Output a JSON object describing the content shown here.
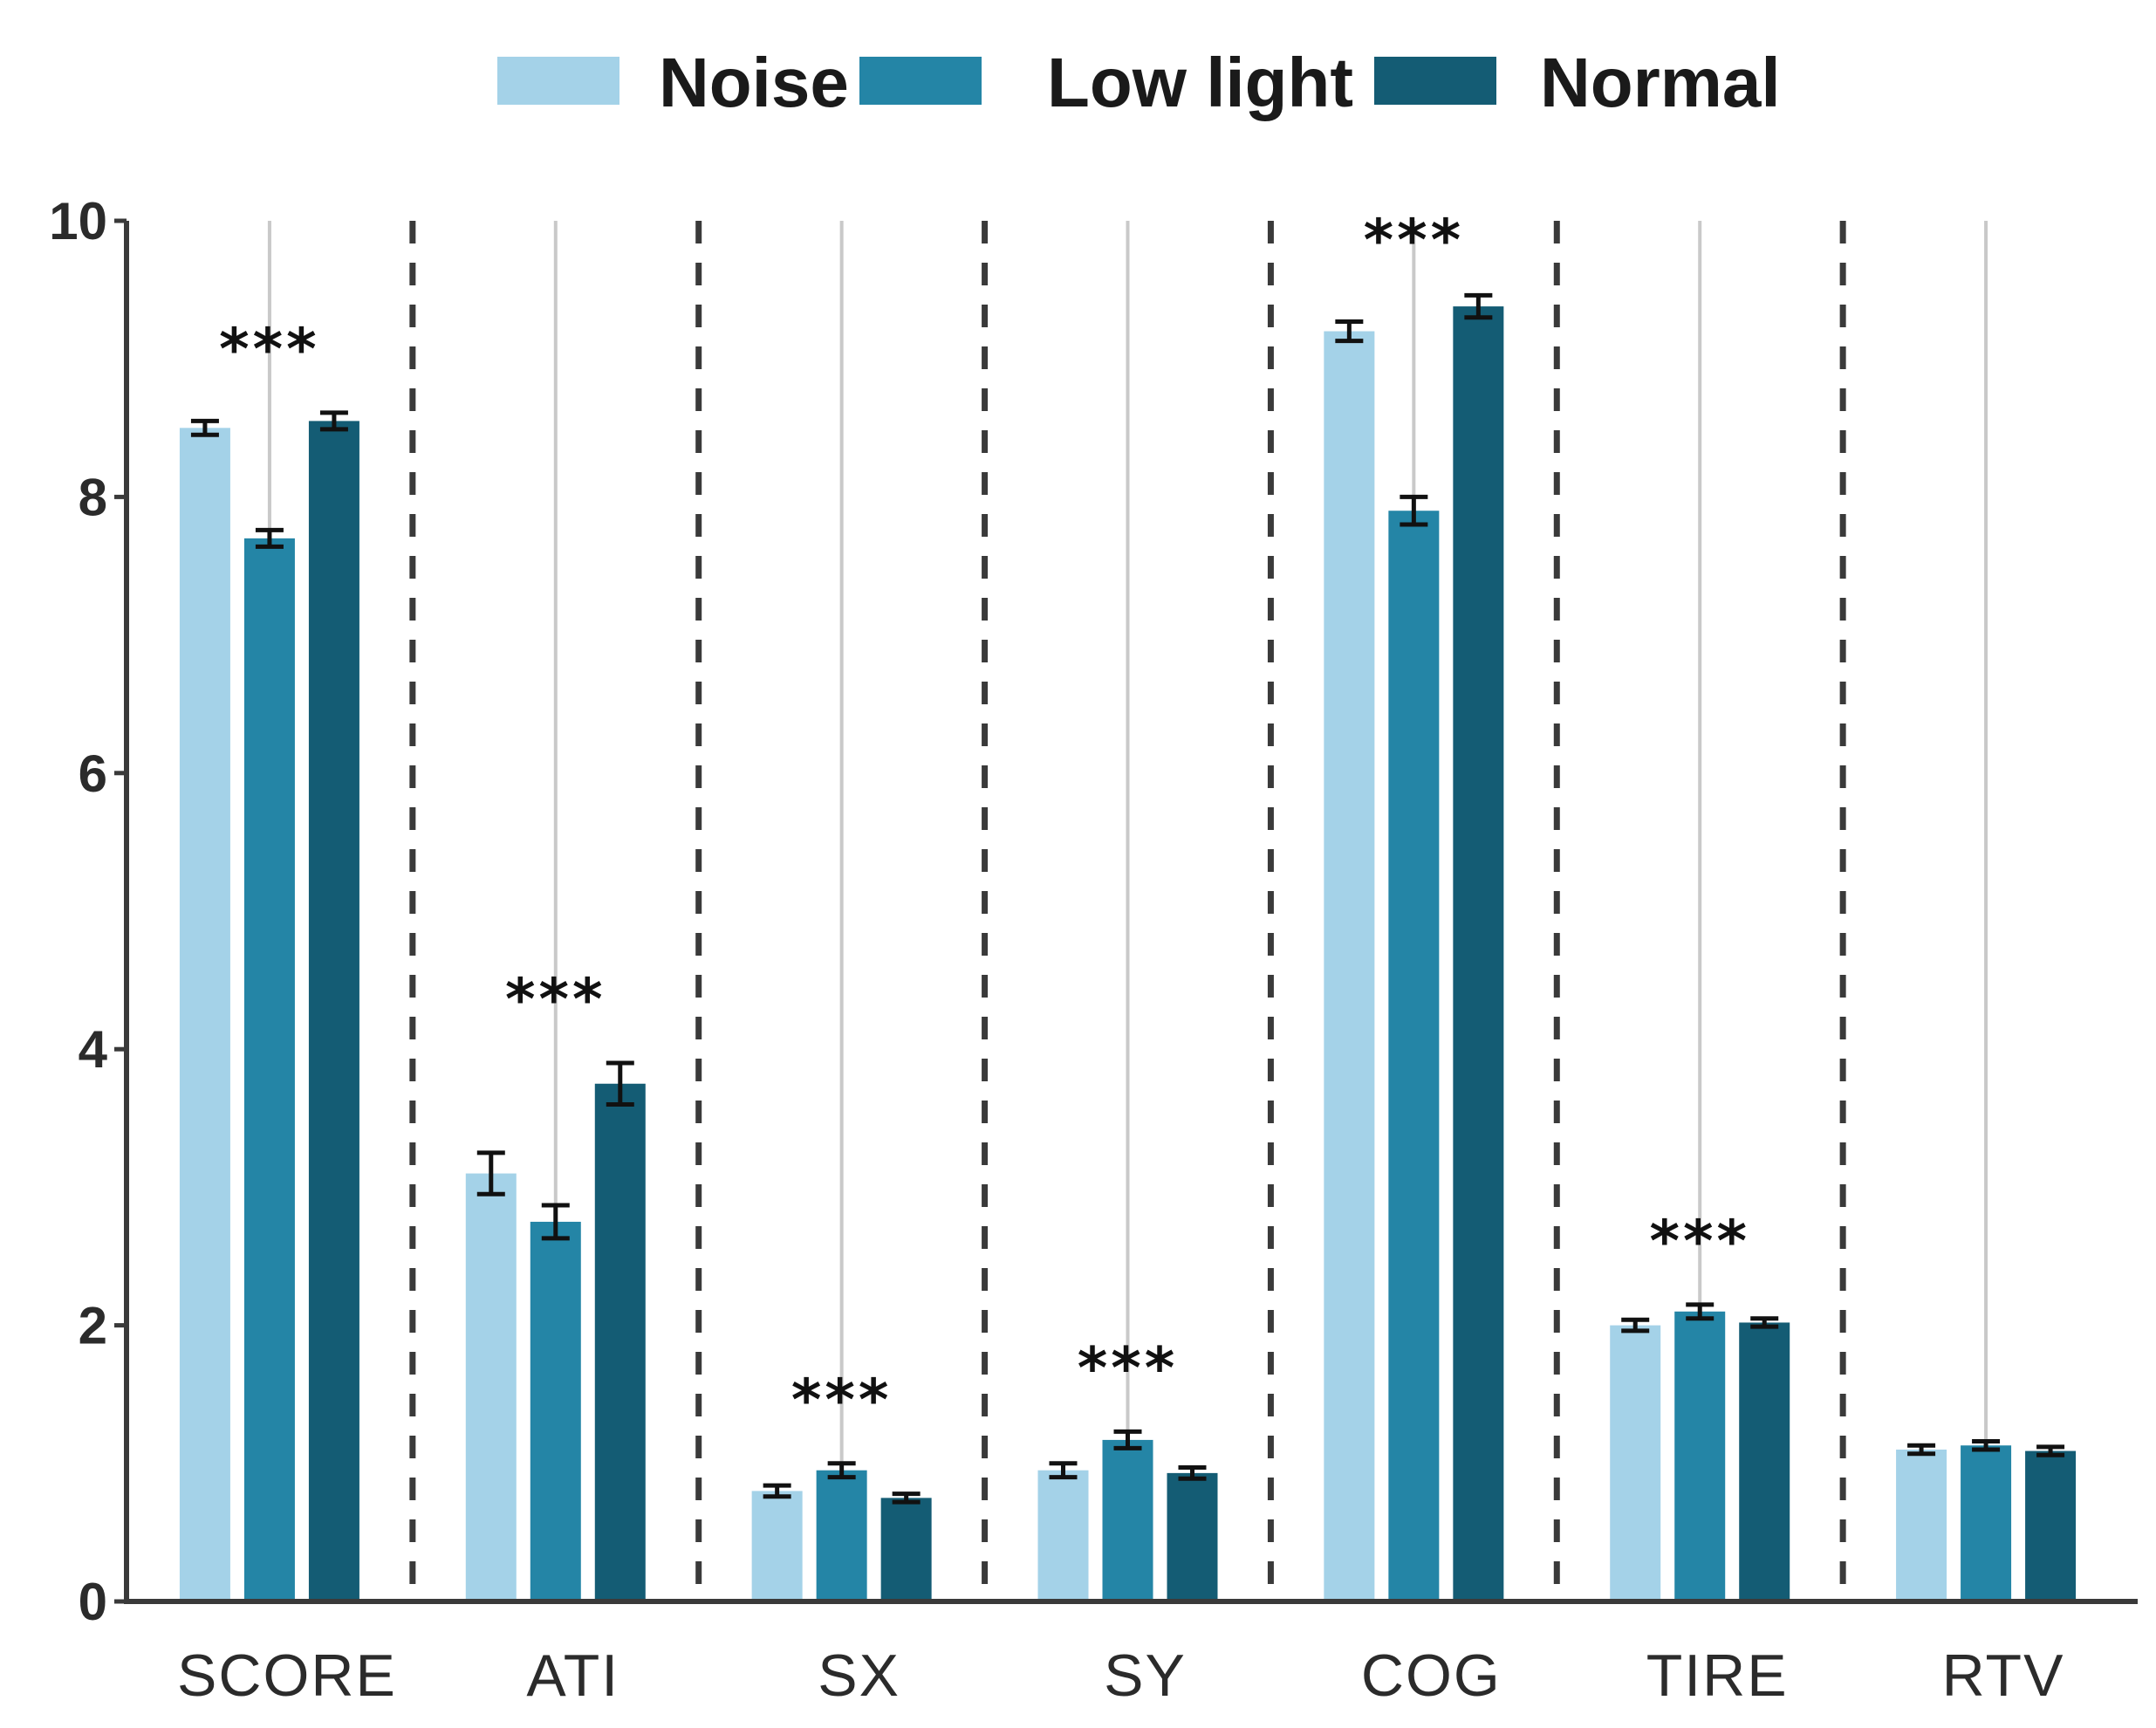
{
  "chart_data": {
    "type": "bar",
    "title": "",
    "xlabel": "",
    "ylabel": "",
    "ylim": [
      0,
      10
    ],
    "yticks": [
      "0",
      "2",
      "4",
      "6",
      "8",
      "10"
    ],
    "grid": false,
    "legend_position": "top-center",
    "categories": [
      "SCORE",
      "ATI",
      "SX",
      "SY",
      "COG",
      "TIRE",
      "RTV"
    ],
    "series": [
      {
        "name": "Noise",
        "color": "#a4d2e8",
        "values": [
          8.5,
          3.1,
          0.8,
          0.95,
          9.2,
          2.0,
          1.1
        ],
        "errors": [
          0.05,
          0.15,
          0.04,
          0.05,
          0.07,
          0.04,
          0.03
        ]
      },
      {
        "name": "Low light",
        "color": "#2485a6",
        "values": [
          7.7,
          2.75,
          0.95,
          1.17,
          7.9,
          2.1,
          1.13
        ],
        "errors": [
          0.06,
          0.12,
          0.05,
          0.06,
          0.1,
          0.05,
          0.03
        ]
      },
      {
        "name": "Normal",
        "color": "#145c74",
        "values": [
          8.55,
          3.75,
          0.75,
          0.93,
          9.38,
          2.02,
          1.09
        ],
        "errors": [
          0.06,
          0.15,
          0.03,
          0.04,
          0.08,
          0.03,
          0.03
        ]
      }
    ],
    "annotations": [
      "***",
      "***",
      "***",
      "***",
      "***",
      "***",
      ""
    ]
  }
}
